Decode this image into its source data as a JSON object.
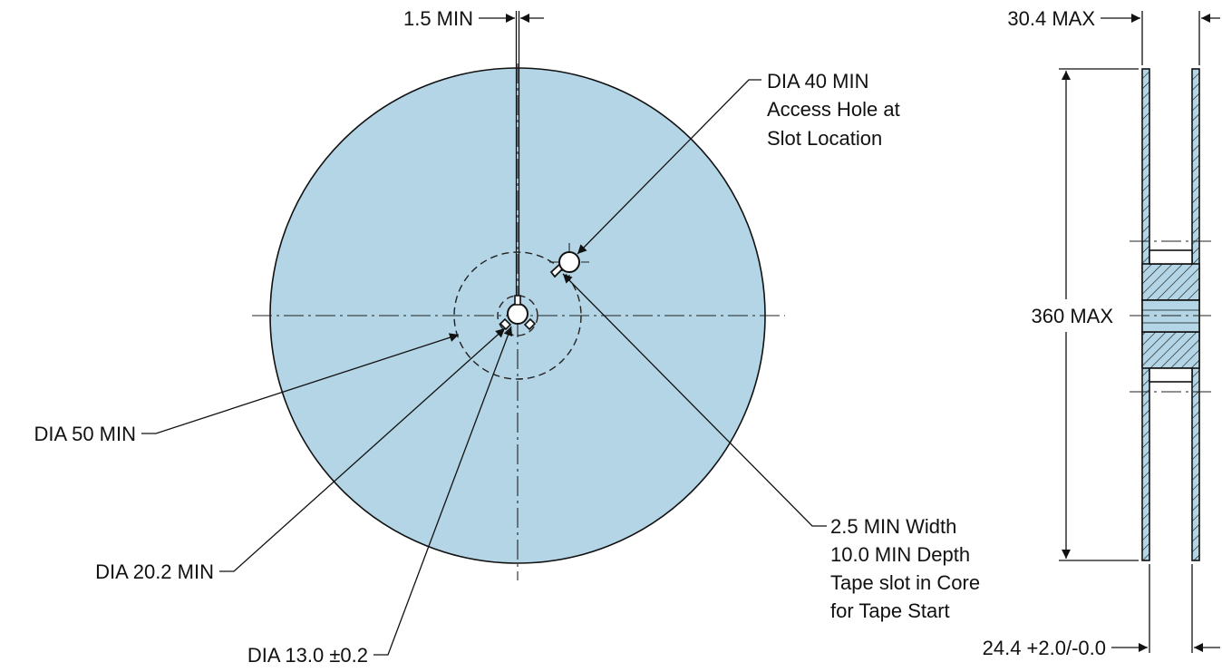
{
  "colors": {
    "reel_fill": "#b3d5e6",
    "line": "#111111"
  },
  "front_view": {
    "slot_width_label": "1.5 MIN",
    "access_hole_label": [
      "DIA 40 MIN",
      "Access Hole at",
      "Slot Location"
    ],
    "core_dia_label": "DIA 50 MIN",
    "hub_dia_label": "DIA 20.2 MIN",
    "arbor_dia_label": "DIA 13.0 ±0.2",
    "tape_slot_label": [
      "2.5 MIN Width",
      "10.0 MIN Depth",
      "Tape slot in Core",
      "for Tape Start"
    ]
  },
  "side_view": {
    "overall_width_label": "30.4 MAX",
    "reel_dia_label": "360 MAX",
    "inner_width_label": "24.4 +2.0/-0.0"
  }
}
